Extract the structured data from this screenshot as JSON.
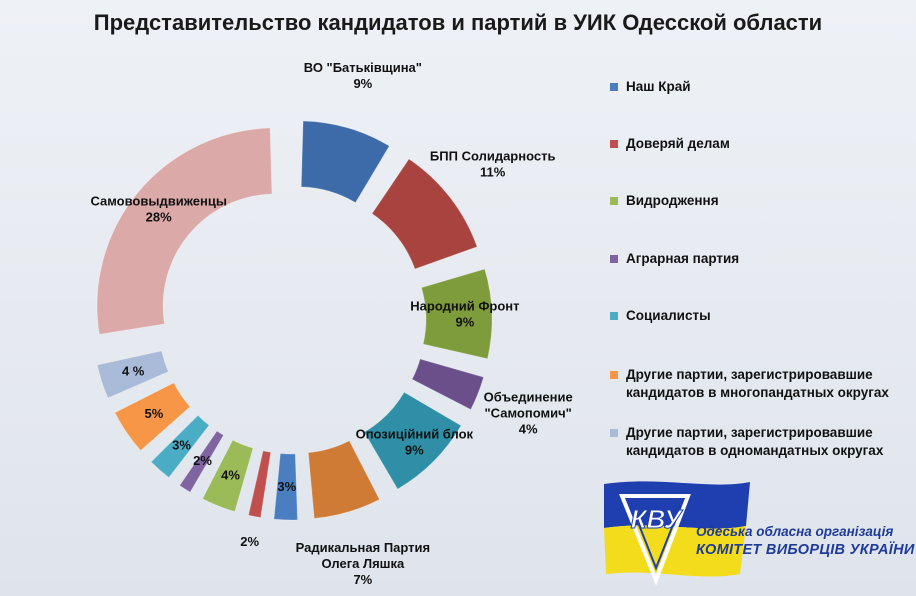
{
  "chart_data": {
    "type": "pie",
    "title": "Представительство кандидатов и партий в УИК Одесской области",
    "slices": [
      {
        "label": "ВО \"Батьківщина\"",
        "value": 9,
        "display": "9%",
        "color": "#3d6aa8"
      },
      {
        "label": "БПП Солидарность",
        "value": 11,
        "display": "11%",
        "color": "#a9433f"
      },
      {
        "label": "Народний Фронт",
        "value": 9,
        "display": "9%",
        "color": "#7f9c3d"
      },
      {
        "label": "Объединение \"Самопомич\"",
        "value": 4,
        "display": "4%",
        "color": "#6a4f8a"
      },
      {
        "label": "Опозиційний блок",
        "value": 9,
        "display": "9%",
        "color": "#2f8fa6"
      },
      {
        "label": "Радикальная Партия Олега Ляшка",
        "value": 7,
        "display": "7%",
        "color": "#d07b35"
      },
      {
        "label": "",
        "value": 3,
        "display": "3%",
        "color": "#4a7ec0"
      },
      {
        "label": "",
        "value": 2,
        "display": "2%",
        "color": "#c0504d"
      },
      {
        "label": "",
        "value": 4,
        "display": "4%",
        "color": "#9bbb59"
      },
      {
        "label": "",
        "value": 2,
        "display": "2%",
        "color": "#8064a2"
      },
      {
        "label": "",
        "value": 3,
        "display": "3%",
        "color": "#4bacc6"
      },
      {
        "label": "",
        "value": 5,
        "display": "5%",
        "color": "#f79646"
      },
      {
        "label": "",
        "value": 4,
        "display": "4 %",
        "color": "#a9bbd9"
      },
      {
        "label": "Самововыдвиженцы",
        "value": 28,
        "display": "28%",
        "color": "#dca9a9"
      }
    ],
    "legend": [
      {
        "label": "Наш Край",
        "color": "#4a7ec0"
      },
      {
        "label": "Доверяй делам",
        "color": "#c0504d"
      },
      {
        "label": "Видродження",
        "color": "#9bbb59"
      },
      {
        "label": "Аграрная партия",
        "color": "#8064a2"
      },
      {
        "label": "Социалисты",
        "color": "#4bacc6"
      },
      {
        "label": "Другие партии, зарегистрировавшие кандидатов в многопандатных округах",
        "color": "#f79646"
      },
      {
        "label": "Другие партии, зарегистрировавшие кандидатов в одномандатных округах",
        "color": "#a9bbd9"
      }
    ],
    "legend_position": "right"
  },
  "logo": {
    "monogram": "КВУ",
    "line1": "Одеська обласна організація",
    "line2": "КОМІТЕТ ВИБОРЦІВ УКРАЇНИ"
  }
}
